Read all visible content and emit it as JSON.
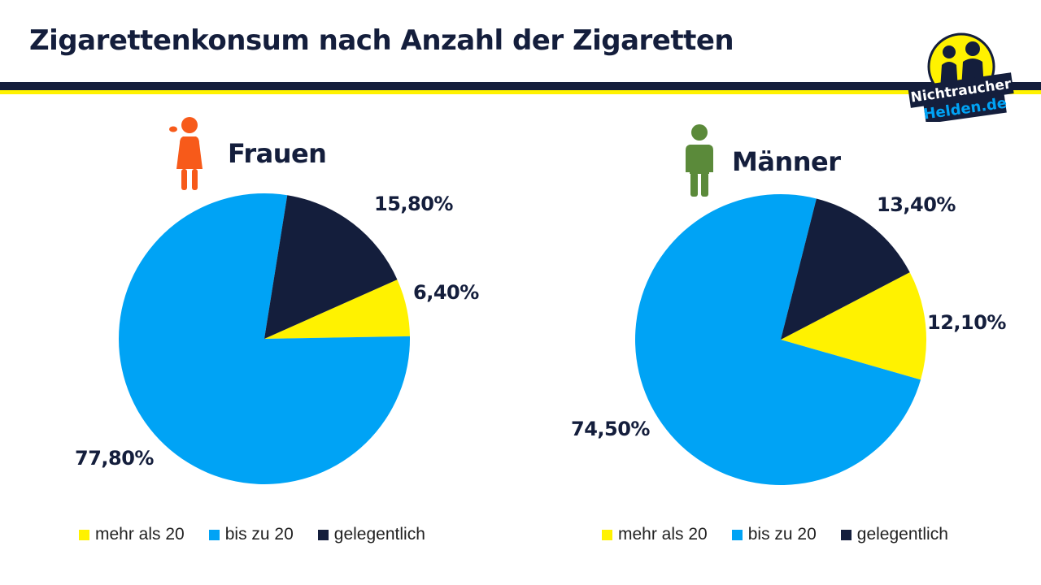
{
  "header": {
    "title": "Zigarettenkonsum nach Anzahl der Zigaretten",
    "logo_line1": "Nichtraucher",
    "logo_line2": "Helden.de"
  },
  "colors": {
    "navy": "#141e3c",
    "yellow": "#fff200",
    "blue": "#00a3f5",
    "female": "#f75a1a",
    "male": "#5b8a3a"
  },
  "chart_data": [
    {
      "type": "pie",
      "title": "Frauen",
      "icon": "female-person-icon",
      "slices": [
        {
          "label": "mehr als 20",
          "value": 6.4,
          "display": "6,40%",
          "color": "#fff200"
        },
        {
          "label": "bis zu 20",
          "value": 77.8,
          "display": "77,80%",
          "color": "#00a3f5"
        },
        {
          "label": "gelegentlich",
          "value": 15.8,
          "display": "15,80%",
          "color": "#141e3c"
        }
      ],
      "legend": [
        "mehr als 20",
        "bis zu 20",
        "gelegentlich"
      ]
    },
    {
      "type": "pie",
      "title": "Männer",
      "icon": "male-person-icon",
      "slices": [
        {
          "label": "mehr als 20",
          "value": 12.1,
          "display": "12,10%",
          "color": "#fff200"
        },
        {
          "label": "bis zu 20",
          "value": 74.5,
          "display": "74,50%",
          "color": "#00a3f5"
        },
        {
          "label": "gelegentlich",
          "value": 13.4,
          "display": "13,40%",
          "color": "#141e3c"
        }
      ],
      "legend": [
        "mehr als 20",
        "bis zu 20",
        "gelegentlich"
      ]
    }
  ]
}
